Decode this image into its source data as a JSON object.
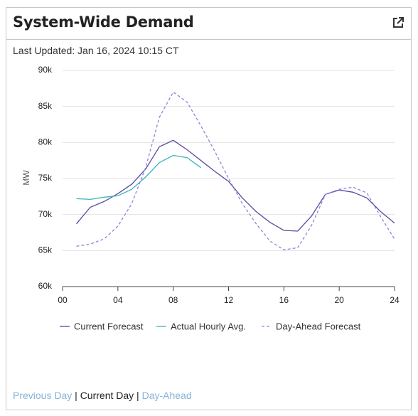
{
  "header": {
    "title": "System-Wide Demand"
  },
  "last_updated": "Last Updated: Jan 16, 2024 10:15 CT",
  "chart_data": {
    "type": "line",
    "ylabel": "MW",
    "x": [
      1,
      2,
      3,
      4,
      5,
      6,
      7,
      8,
      9,
      10,
      11,
      12,
      13,
      14,
      15,
      16,
      17,
      18,
      19,
      20,
      21,
      22,
      23,
      24
    ],
    "series": [
      {
        "name": "Current Forecast",
        "color": "#5b4ba0",
        "values": [
          68700,
          71000,
          71800,
          72900,
          74200,
          76300,
          79400,
          80300,
          79000,
          77500,
          76000,
          74600,
          72300,
          70400,
          68900,
          67800,
          67700,
          69800,
          72800,
          73400,
          73100,
          72300,
          70400,
          68800
        ]
      },
      {
        "name": "Actual Hourly Avg.",
        "color": "#3bb3bd",
        "values": [
          72200,
          72100,
          72400,
          72600,
          73500,
          75200,
          77200,
          78200,
          77900,
          76500,
          null,
          null,
          null,
          null,
          null,
          null,
          null,
          null,
          null,
          null,
          null,
          null,
          null,
          null
        ]
      },
      {
        "name": "Day-Ahead Forecast",
        "color": "#8f85d6",
        "dashed": true,
        "values": [
          65600,
          65900,
          66600,
          68400,
          71500,
          76500,
          83500,
          87000,
          85600,
          82300,
          78800,
          75000,
          71500,
          68700,
          66300,
          65100,
          65400,
          68500,
          72800,
          73500,
          73800,
          73000,
          69700,
          66600
        ]
      }
    ],
    "xlim": [
      0,
      24
    ],
    "xticks": [
      {
        "value": 0,
        "label": "00"
      },
      {
        "value": 4,
        "label": "04"
      },
      {
        "value": 8,
        "label": "08"
      },
      12,
      16,
      20,
      24
    ],
    "ylim": [
      60000,
      90000
    ],
    "yticks": [
      {
        "value": 60000,
        "label": "60k"
      },
      {
        "value": 65000,
        "label": "65k"
      },
      {
        "value": 70000,
        "label": "70k"
      },
      {
        "value": 75000,
        "label": "75k"
      },
      {
        "value": 80000,
        "label": "80k"
      },
      {
        "value": 85000,
        "label": "85k"
      },
      {
        "value": 90000,
        "label": "90k"
      }
    ],
    "grid": true,
    "legend": "bottom"
  },
  "footer": {
    "links": [
      "Previous Day",
      "Current Day",
      "Day-Ahead"
    ],
    "separator": "|"
  }
}
